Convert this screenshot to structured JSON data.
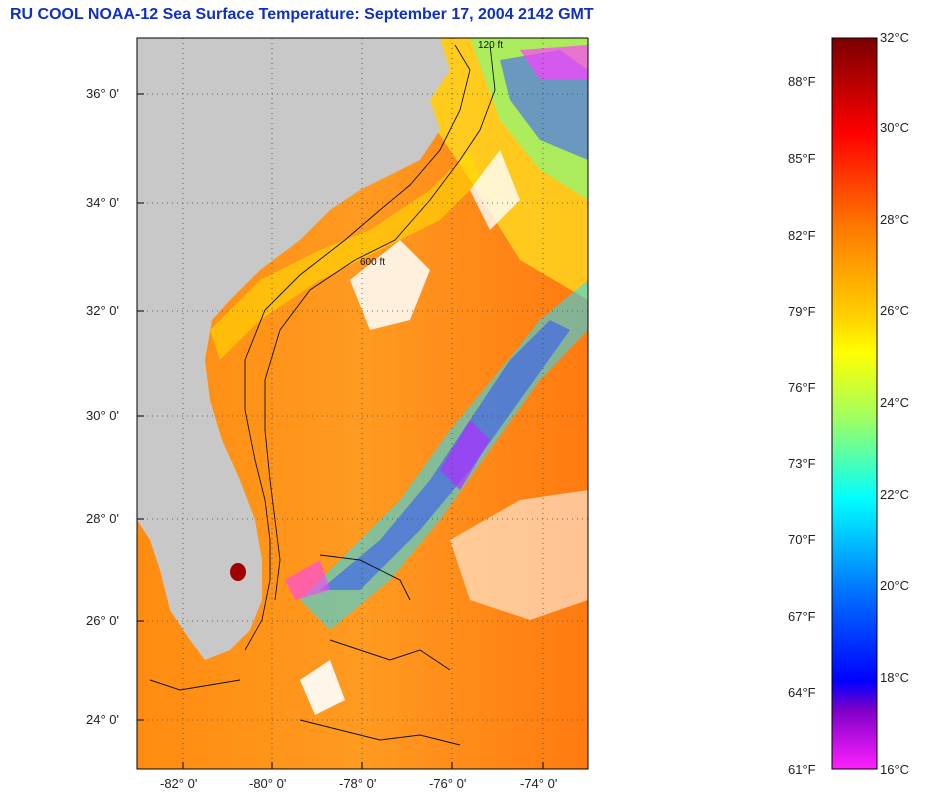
{
  "title": "RU COOL  NOAA-12  Sea Surface Temperature:  September 17, 2004 2142 GMT",
  "map": {
    "lat_labels": [
      "36° 0'",
      "34° 0'",
      "32° 0'",
      "30° 0'",
      "28° 0'",
      "26° 0'",
      "24° 0'"
    ],
    "lon_labels": [
      "-82° 0'",
      "-80° 0'",
      "-78° 0'",
      "-76° 0'",
      "-74° 0'"
    ],
    "contour_labels": [
      "120 ft",
      "600 ft"
    ]
  },
  "colorbar": {
    "fahrenheit_labels": [
      "88°F",
      "85°F",
      "82°F",
      "79°F",
      "76°F",
      "73°F",
      "70°F",
      "67°F",
      "64°F",
      "61°F"
    ],
    "celsius_labels": [
      "32°C",
      "30°C",
      "28°C",
      "26°C",
      "24°C",
      "22°C",
      "20°C",
      "18°C",
      "16°C"
    ],
    "colors": [
      "#800000",
      "#ff0000",
      "#ff8000",
      "#ffff00",
      "#80ff80",
      "#00ffff",
      "#0080ff",
      "#0000ff",
      "#8000c0",
      "#ff00ff"
    ]
  }
}
